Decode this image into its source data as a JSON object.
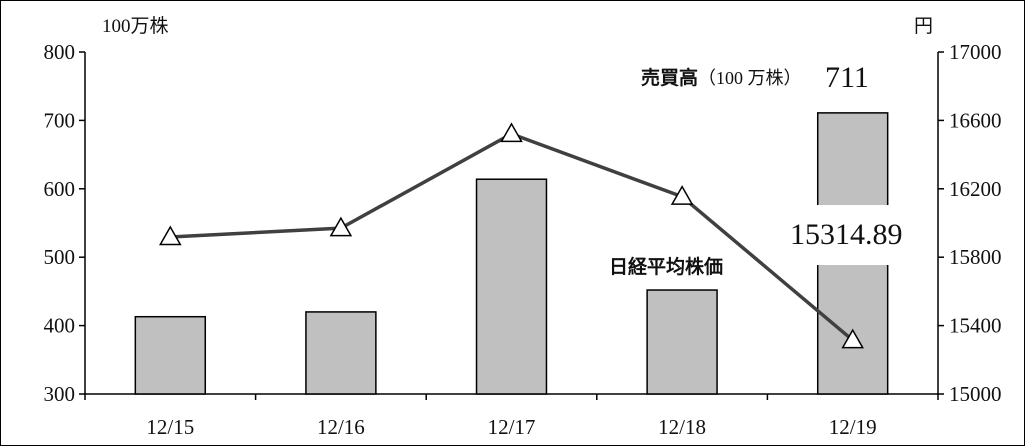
{
  "chart_data": {
    "type": "bar+line",
    "categories": [
      "12/15",
      "12/16",
      "12/17",
      "12/18",
      "12/19"
    ],
    "left_axis": {
      "unit": "100万株",
      "ticks": [
        "300",
        "400",
        "500",
        "600",
        "700",
        "800"
      ],
      "ylim": [
        300,
        800
      ]
    },
    "right_axis": {
      "unit": "円",
      "ticks": [
        "15000",
        "15400",
        "15800",
        "16200",
        "16600",
        "17000"
      ],
      "ylim": [
        15000,
        17000
      ]
    },
    "series": [
      {
        "name": "売買高",
        "type": "bar",
        "axis": "left",
        "values": [
          413,
          420,
          614,
          452,
          711
        ]
      },
      {
        "name": "日経平均株価",
        "type": "line",
        "axis": "right",
        "values": [
          15918,
          15970,
          16521,
          16154,
          15314.89
        ]
      }
    ],
    "annotations": {
      "volume_label_bold": "売買高",
      "volume_label_unit": "（100 万株）",
      "volume_value": "711",
      "index_label": "日経平均株価",
      "index_value": "15314.89"
    },
    "colors": {
      "bar_fill": "#c0c0c0",
      "bar_stroke": "#000000",
      "line": "#404040",
      "marker_fill": "#ffffff"
    },
    "grid": false,
    "legend": "none"
  }
}
